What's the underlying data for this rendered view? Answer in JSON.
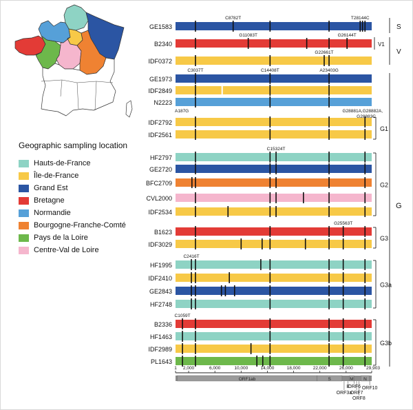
{
  "legend": {
    "title": "Geographic sampling location",
    "items": [
      {
        "label": "Hauts-de-France",
        "color": "#8ed3c4"
      },
      {
        "label": "Île-de-France",
        "color": "#f7c947"
      },
      {
        "label": "Grand Est",
        "color": "#2b55a3"
      },
      {
        "label": "Bretagne",
        "color": "#e33b36"
      },
      {
        "label": "Normandie",
        "color": "#56a0d8"
      },
      {
        "label": "Bourgogne-Franche-Comté",
        "color": "#ef8232"
      },
      {
        "label": "Pays de la Loire",
        "color": "#6db84b"
      },
      {
        "label": "Centre-Val de Loire",
        "color": "#f5b6cd"
      }
    ]
  },
  "map": {
    "regions": [
      {
        "name": "Hauts-de-France",
        "color": "#8ed3c4"
      },
      {
        "name": "Île-de-France",
        "color": "#f7c947"
      },
      {
        "name": "Grand Est",
        "color": "#2b55a3"
      },
      {
        "name": "Normandie",
        "color": "#56a0d8"
      },
      {
        "name": "Bretagne",
        "color": "#e33b36"
      },
      {
        "name": "Pays de la Loire",
        "color": "#6db84b"
      },
      {
        "name": "Centre-Val de Loire",
        "color": "#f5b6cd"
      },
      {
        "name": "Bourgogne-Franche-Comté",
        "color": "#ef8232"
      }
    ]
  },
  "genome": {
    "length_label": "29,903",
    "ticks": [
      "1",
      "2,000",
      "6,000",
      "10,000",
      "14,000",
      "18,000",
      "22,000",
      "26,000"
    ],
    "tick_positions": [
      1,
      2000,
      6000,
      10000,
      14000,
      18000,
      22000,
      26000,
      29903
    ],
    "orfs": [
      {
        "label": "ORF1ab",
        "start": 266,
        "end": 21555
      },
      {
        "label": "S",
        "start": 21563,
        "end": 25384
      },
      {
        "label": "M",
        "start": 26523,
        "end": 27191
      },
      {
        "label": "N",
        "start": 28274,
        "end": 29533
      }
    ],
    "orf_callouts": [
      {
        "label": "E",
        "pos": 26300
      },
      {
        "label": "ORF3a",
        "pos": 25700
      },
      {
        "label": "ORF6",
        "pos": 27250
      },
      {
        "label": "ORF7",
        "pos": 27600
      },
      {
        "label": "ORF8",
        "pos": 27950
      },
      {
        "label": "ORF10",
        "pos": 29600
      }
    ]
  },
  "colors": {
    "HF": "#8ed3c4",
    "IDF": "#f7c947",
    "GE": "#2b55a3",
    "B": "#e33b36",
    "N": "#56a0d8",
    "BFC": "#ef8232",
    "PL": "#6db84b",
    "CVL": "#f5b6cd"
  },
  "rows": [
    {
      "label": "GE1583",
      "region": "GE",
      "muts": [
        3037,
        8782,
        14408,
        23403,
        28144,
        28500,
        28881
      ]
    },
    {
      "label": "B2340",
      "region": "B",
      "muts": [
        3037,
        11083,
        14408,
        20000,
        23403,
        26144
      ]
    },
    {
      "label": "IDF0372",
      "region": "IDF",
      "muts": [
        3037,
        14408,
        22661,
        23403
      ]
    },
    {
      "label": "GE1973",
      "region": "GE",
      "muts": [
        3037,
        14408,
        23403
      ]
    },
    {
      "label": "IDF2849",
      "region": "IDF",
      "muts": [
        3037,
        14408,
        23403
      ],
      "gap": 7000
    },
    {
      "label": "N2223",
      "region": "N",
      "muts": [
        3037,
        14408,
        23403
      ]
    },
    {
      "label": "IDF2792",
      "region": "IDF",
      "muts": [
        3037,
        14408,
        23403,
        28881
      ]
    },
    {
      "label": "IDF2561",
      "region": "IDF",
      "muts": [
        3037,
        14408,
        23403,
        28881
      ]
    },
    {
      "label": "HF2797",
      "region": "HF",
      "muts": [
        3037,
        14408,
        15324,
        23403,
        28881
      ]
    },
    {
      "label": "GE2720",
      "region": "GE",
      "muts": [
        3037,
        14408,
        15324,
        23403,
        28881
      ]
    },
    {
      "label": "BFC2709",
      "region": "BFC",
      "muts": [
        2500,
        3037,
        14408,
        15324,
        23403,
        28881
      ]
    },
    {
      "label": "CVL2000",
      "region": "CVL",
      "muts": [
        3037,
        14408,
        15324,
        19500,
        23403,
        28881
      ]
    },
    {
      "label": "IDF2534",
      "region": "IDF",
      "muts": [
        3037,
        8000,
        14408,
        15324,
        23403,
        28881
      ]
    },
    {
      "label": "B1623",
      "region": "B",
      "muts": [
        3037,
        14408,
        23403,
        25563,
        28881
      ]
    },
    {
      "label": "IDF3029",
      "region": "IDF",
      "muts": [
        3037,
        10000,
        13200,
        14408,
        19800,
        23403,
        25563,
        28881
      ]
    },
    {
      "label": "HF1995",
      "region": "HF",
      "muts": [
        2416,
        3037,
        13000,
        14408,
        23403,
        25563,
        28881
      ]
    },
    {
      "label": "IDF2410",
      "region": "IDF",
      "muts": [
        2416,
        3037,
        8200,
        14408,
        23403,
        25563,
        28881
      ]
    },
    {
      "label": "GE2843",
      "region": "GE",
      "muts": [
        2416,
        3037,
        7000,
        7600,
        9000,
        14408,
        23403,
        25563,
        28881
      ]
    },
    {
      "label": "HF2748",
      "region": "HF",
      "muts": [
        2416,
        3037,
        14408,
        23403,
        25563,
        28881
      ]
    },
    {
      "label": "B2336",
      "region": "B",
      "muts": [
        1059,
        3037,
        14408,
        23403,
        25563,
        28881
      ]
    },
    {
      "label": "HF1463",
      "region": "HF",
      "muts": [
        1059,
        3037,
        14408,
        23403,
        25563,
        28881
      ]
    },
    {
      "label": "IDF2989",
      "region": "IDF",
      "muts": [
        1059,
        3037,
        11500,
        14408,
        23403,
        25563,
        28881
      ]
    },
    {
      "label": "PL1643",
      "region": "PL",
      "muts": [
        1059,
        3037,
        12400,
        13300,
        14408,
        23403,
        25563,
        28881
      ]
    }
  ],
  "annotations": [
    {
      "text": "C8782T",
      "row": 0,
      "pos": 8782
    },
    {
      "text": "T28144C",
      "row": 0,
      "pos": 28144
    },
    {
      "text": "G11083T",
      "row": 1,
      "pos": 11083
    },
    {
      "text": "G26144T",
      "row": 1,
      "pos": 26144
    },
    {
      "text": "G22661T",
      "row": 2,
      "pos": 22661
    },
    {
      "text": "C3037T",
      "row": 3,
      "pos": 3037
    },
    {
      "text": "C14408T",
      "row": 3,
      "pos": 14408
    },
    {
      "text": "A23403G",
      "row": 3,
      "pos": 23403
    },
    {
      "text": "C15324T",
      "row": 8,
      "pos": 15324
    },
    {
      "text": "G25563T",
      "row": 13,
      "pos": 25563
    },
    {
      "text": "C2416T",
      "row": 15,
      "pos": 2416
    },
    {
      "text": "C1059T",
      "row": 19,
      "pos": 1059
    }
  ],
  "below_notes": [
    {
      "text": "A187G",
      "row": 5,
      "pos": 187
    },
    {
      "text": "G28881A,G28882A,",
      "row": 5,
      "pos": 28881
    },
    {
      "text": "G28883C",
      "row": 5,
      "pos": 28883
    }
  ],
  "clades": {
    "S": "S",
    "V": "V",
    "V1": "V1",
    "G": "G",
    "G1": "G1",
    "G2": "G2",
    "G3": "G3",
    "G3a": "G3a",
    "G3b": "G3b"
  }
}
